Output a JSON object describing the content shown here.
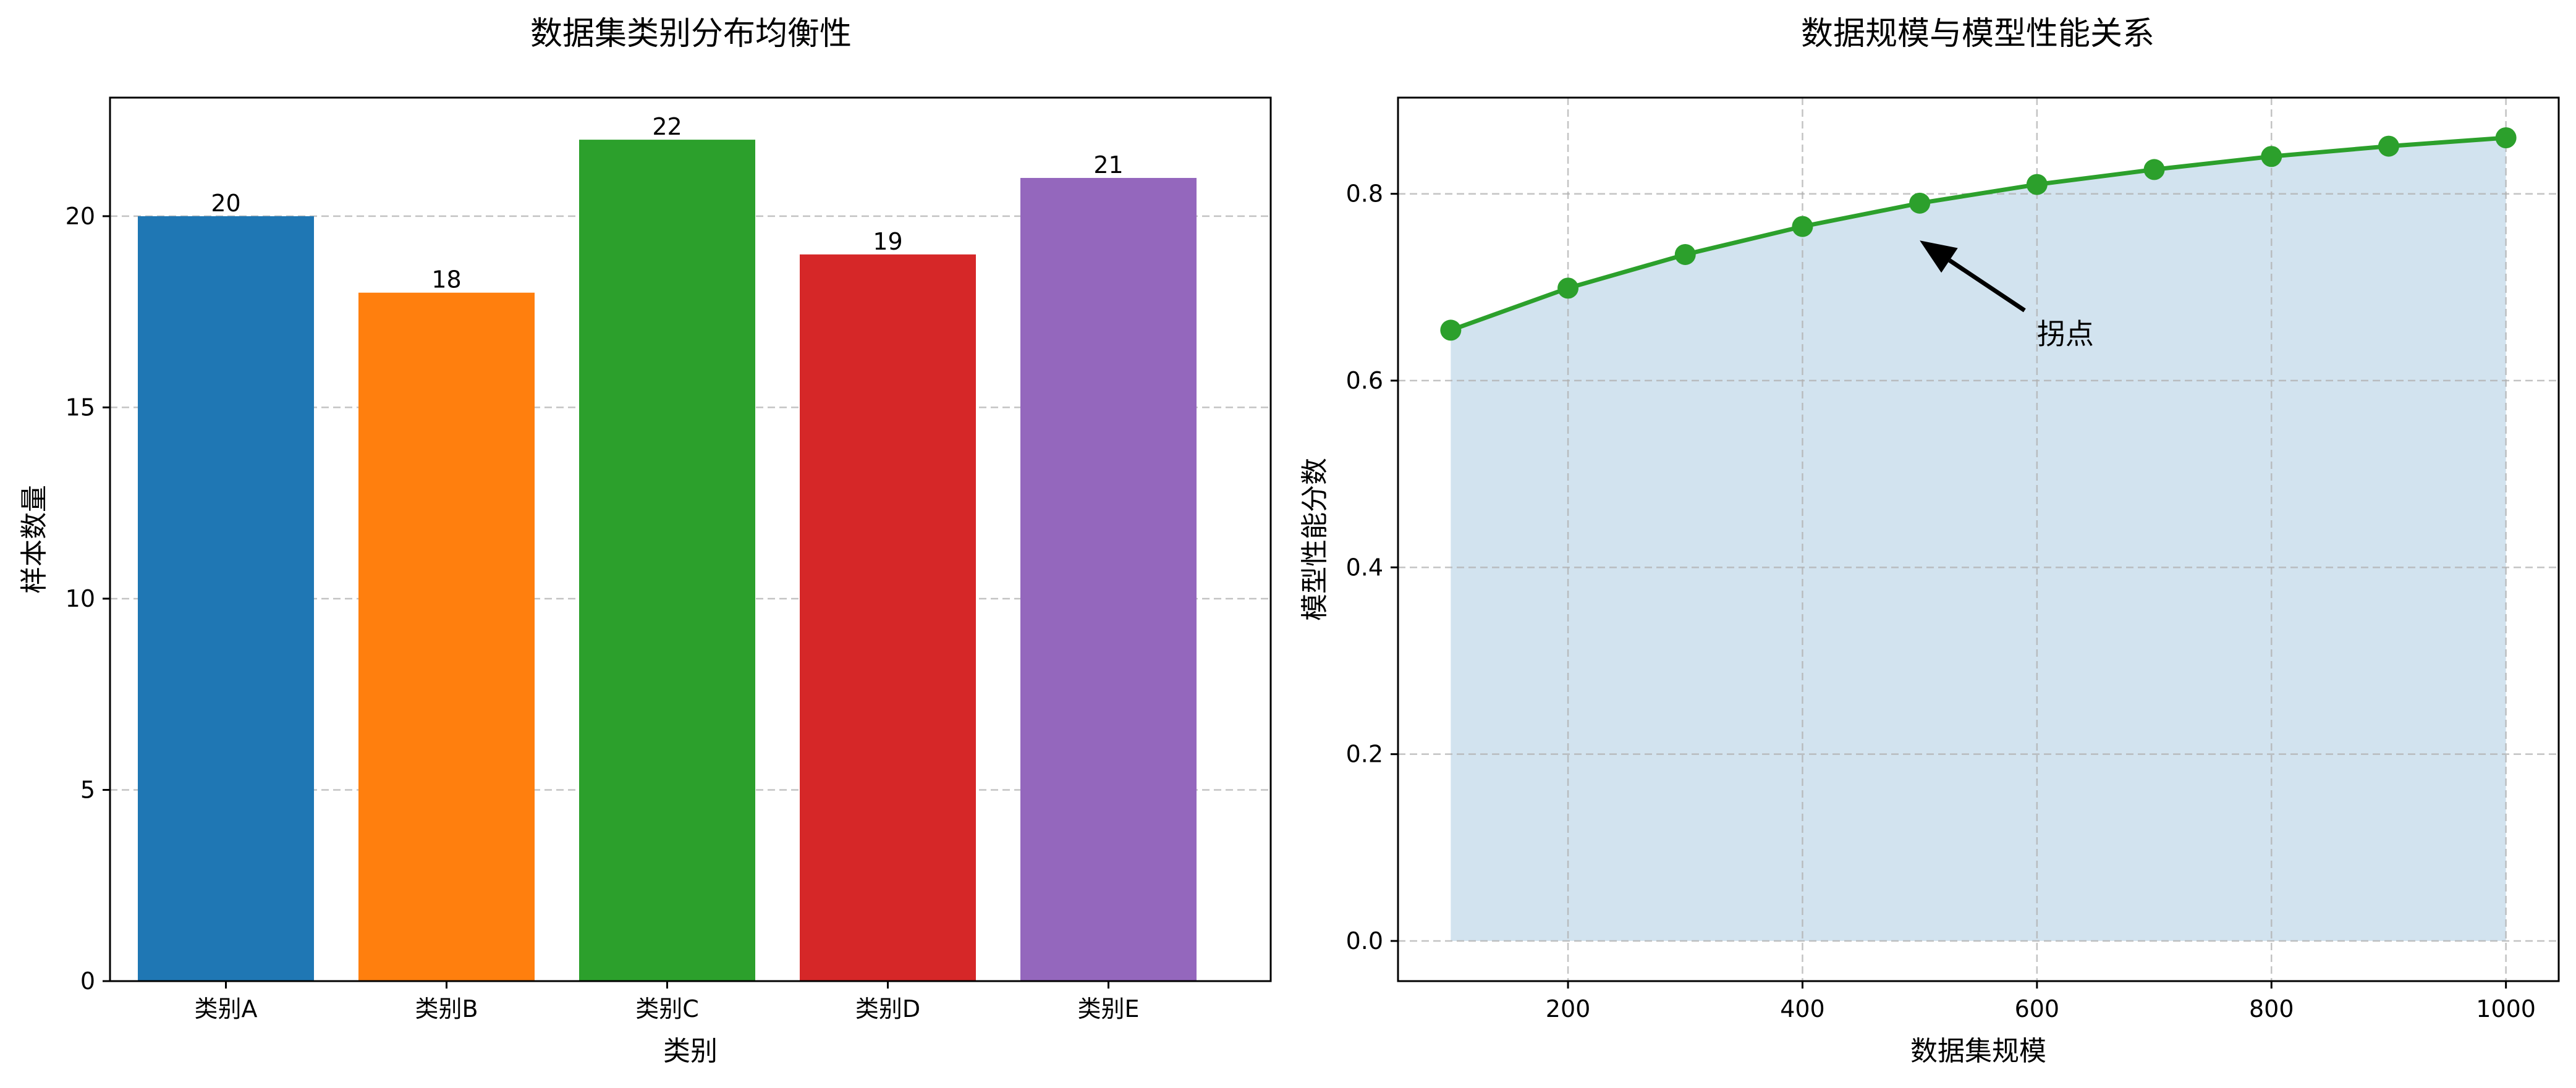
{
  "chart_data": [
    {
      "type": "bar",
      "title": "数据集类别分布均衡性",
      "xlabel": "类别",
      "ylabel": "样本数量",
      "categories": [
        "类别A",
        "类别B",
        "类别C",
        "类别D",
        "类别E"
      ],
      "values": [
        20,
        18,
        22,
        19,
        21
      ],
      "data_labels": [
        "20",
        "18",
        "22",
        "19",
        "21"
      ],
      "colors": [
        "#1f77b4",
        "#ff7f0e",
        "#2ca02c",
        "#d62728",
        "#9467bd"
      ],
      "ylim": [
        0,
        23.1
      ],
      "yticks": [
        0,
        5,
        10,
        15,
        20
      ],
      "ytick_labels": [
        "0",
        "5",
        "10",
        "15",
        "20"
      ],
      "grid": "y-dashed"
    },
    {
      "type": "line",
      "title": "数据规模与模型性能关系",
      "xlabel": "数据集规模",
      "ylabel": "模型性能分数",
      "x": [
        100,
        200,
        300,
        400,
        500,
        600,
        700,
        800,
        900,
        1000
      ],
      "series": [
        {
          "values": [
            0.654,
            0.699,
            0.735,
            0.765,
            0.79,
            0.81,
            0.826,
            0.84,
            0.851,
            0.86
          ],
          "color": "#2ca02c",
          "fill_color": "#a6c8e0",
          "area_fill": true,
          "markers": true
        }
      ],
      "xlim": [
        55,
        1045
      ],
      "ylim": [
        -0.043,
        0.903
      ],
      "xticks": [
        200,
        400,
        600,
        800,
        1000
      ],
      "xtick_labels": [
        "200",
        "400",
        "600",
        "800",
        "1000"
      ],
      "yticks": [
        0.0,
        0.2,
        0.4,
        0.6,
        0.8
      ],
      "ytick_labels": [
        "0.0",
        "0.2",
        "0.4",
        "0.6",
        "0.8"
      ],
      "grid": "both-dashed",
      "annotation": {
        "text": "拐点",
        "point": [
          500,
          0.75
        ],
        "text_position": [
          600,
          0.65
        ]
      }
    }
  ]
}
